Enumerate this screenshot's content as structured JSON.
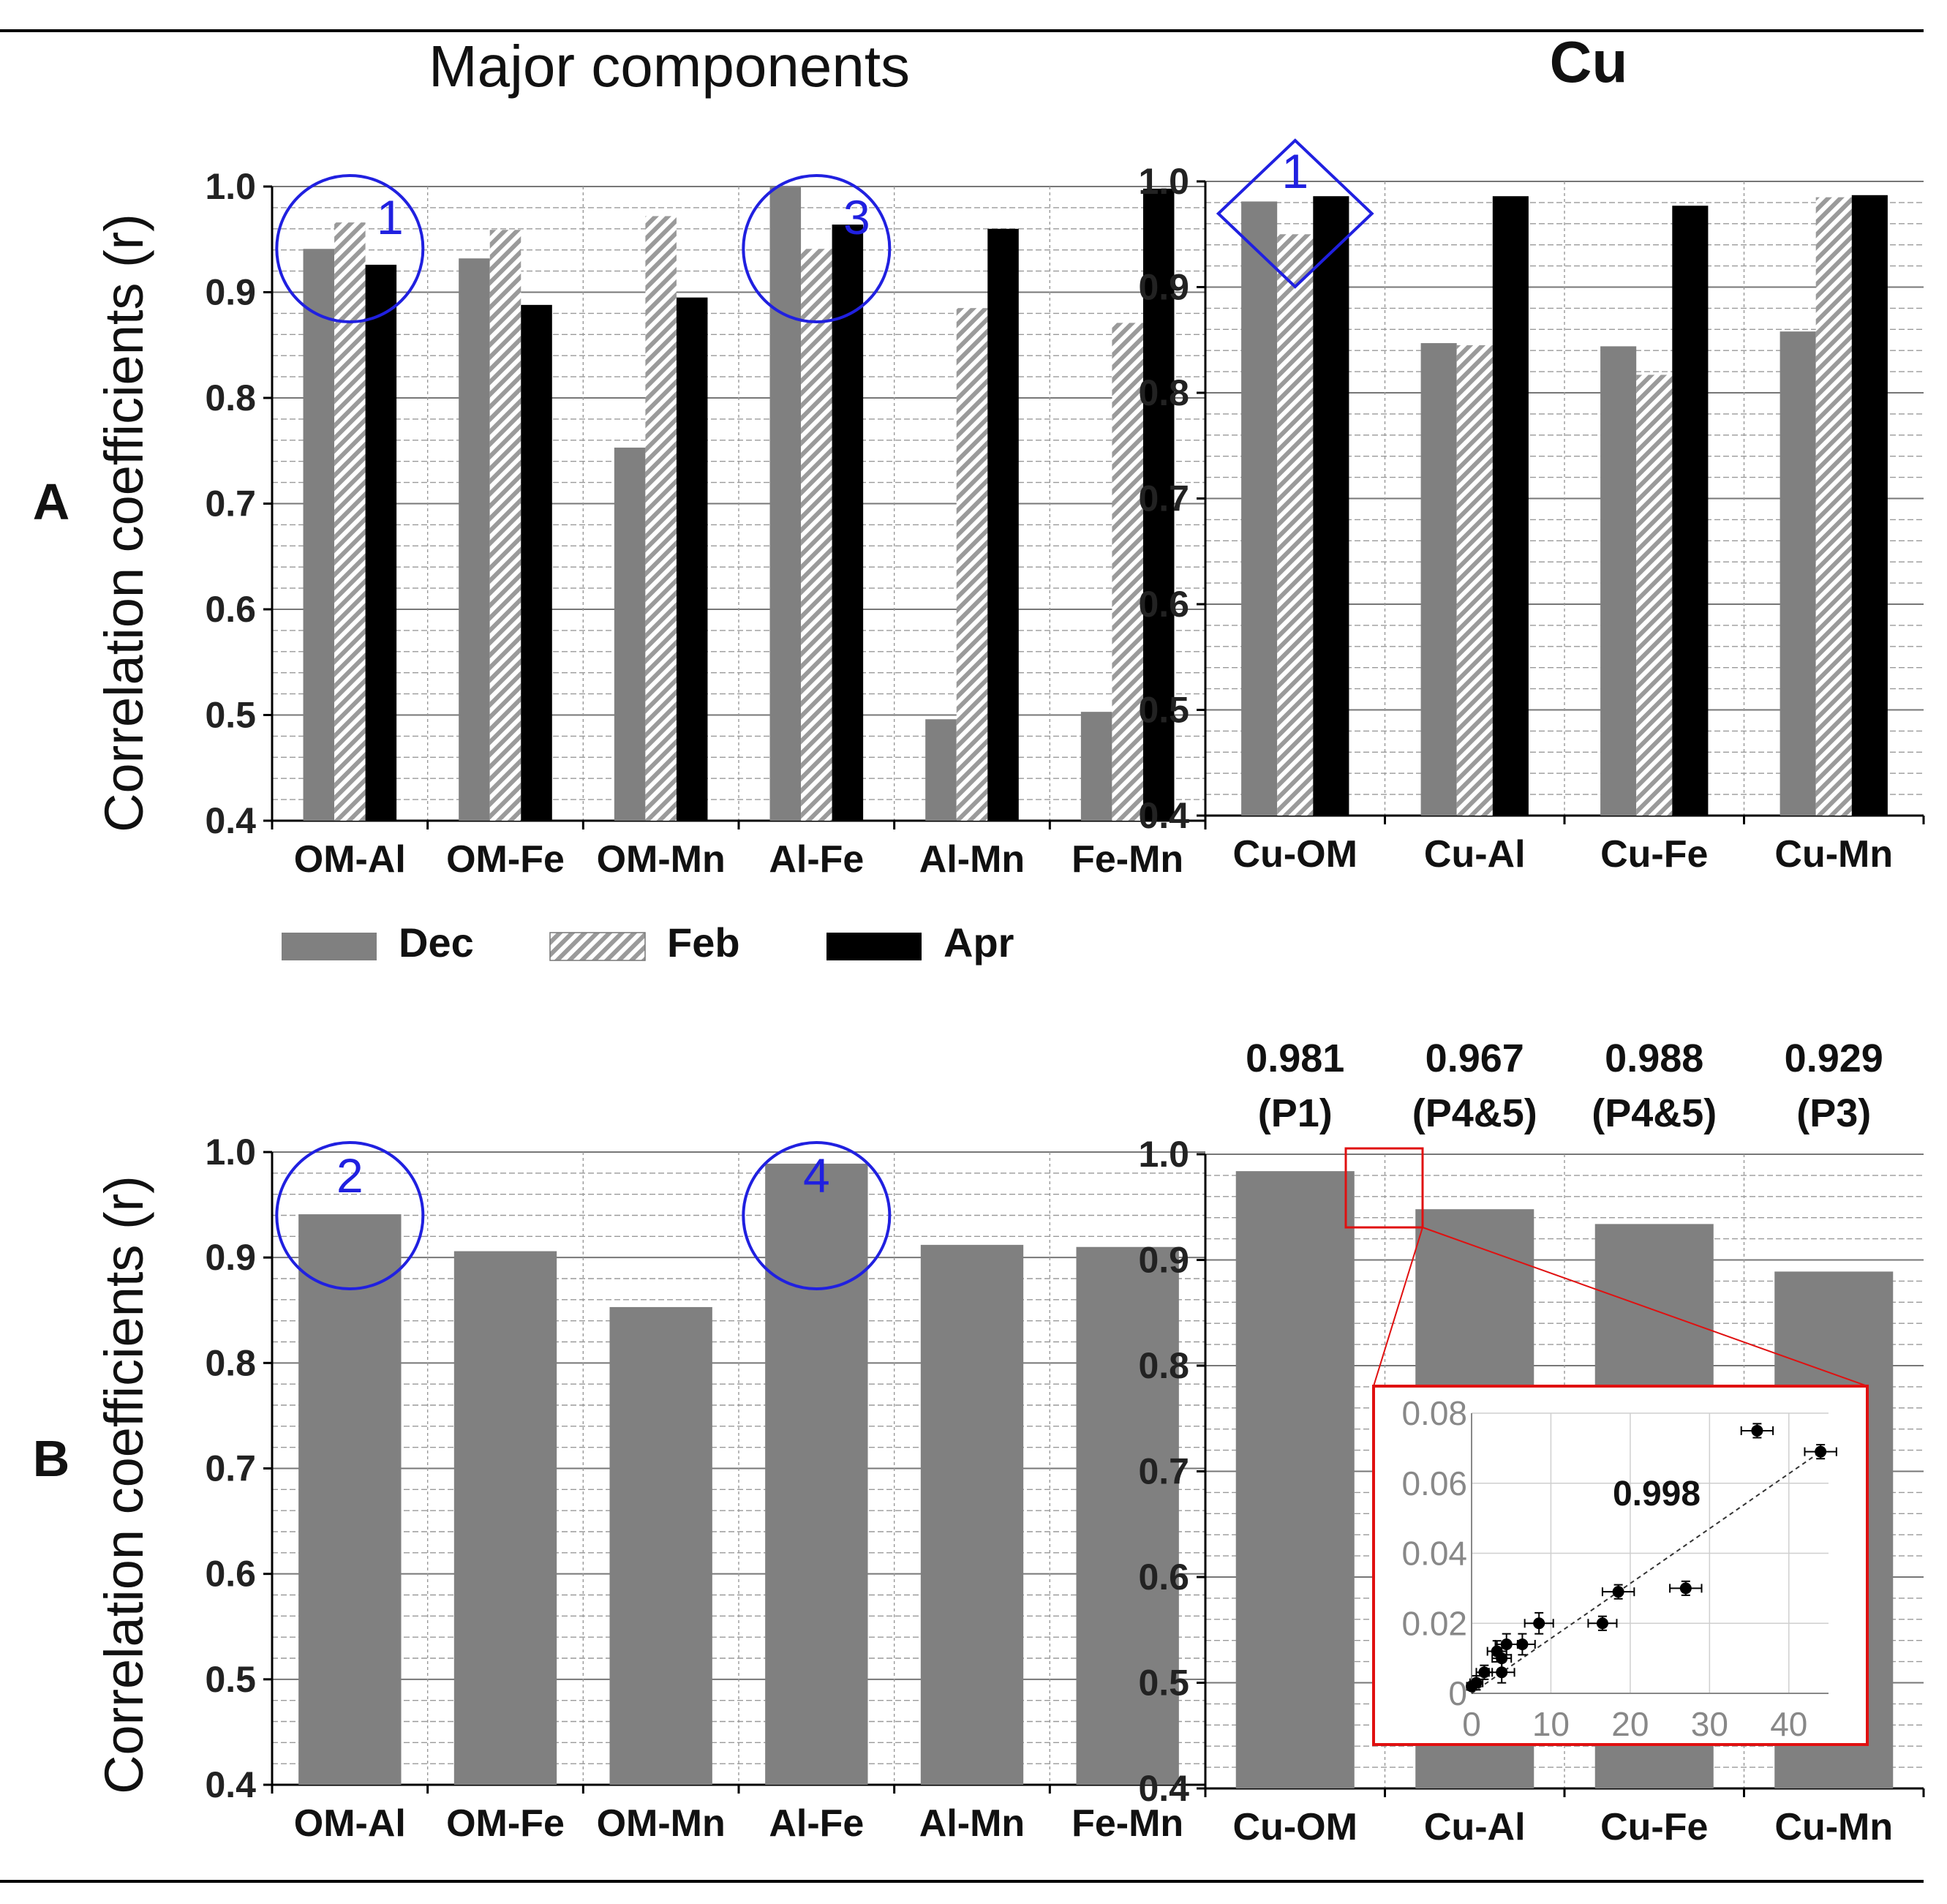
{
  "colors": {
    "dec": "#808080",
    "feb_hatch": "#9a9a9a",
    "apr": "#000000",
    "annotation": "#2020e0",
    "inset": "#e01010",
    "grid": "#9a9a9a"
  },
  "text": {
    "title_major": "Major components",
    "title_cu": "Cu",
    "label_a": "A",
    "label_b": "B",
    "y_label_a": "Correlation coefficients (r)",
    "y_label_b": "Correlation coefficients (r)"
  },
  "legend": [
    {
      "name": "Dec",
      "style": "dec"
    },
    {
      "name": "Feb",
      "style": "feb"
    },
    {
      "name": "Apr",
      "style": "apr"
    }
  ],
  "chart_data": [
    {
      "id": "A_major",
      "type": "bar",
      "categories": [
        "OM-Al",
        "OM-Fe",
        "OM-Mn",
        "Al-Fe",
        "Al-Mn",
        "Fe-Mn"
      ],
      "series": [
        {
          "name": "Dec",
          "values": [
            0.941,
            0.932,
            0.753,
            1.0,
            0.496,
            0.503
          ]
        },
        {
          "name": "Feb",
          "values": [
            0.966,
            0.959,
            0.972,
            0.941,
            0.885,
            0.871
          ]
        },
        {
          "name": "Apr",
          "values": [
            0.926,
            0.888,
            0.895,
            0.964,
            0.96,
            0.998
          ]
        }
      ],
      "ylim": [
        0.4,
        1.0
      ],
      "yticks": [
        "0.4",
        "0.5",
        "0.6",
        "0.7",
        "0.8",
        "0.9",
        "1.0"
      ],
      "ylabel": "Correlation coefficients (r)",
      "annotations": [
        {
          "label": "1",
          "shape": "circle",
          "category": 0
        },
        {
          "label": "3",
          "shape": "circle",
          "category": 3
        }
      ]
    },
    {
      "id": "A_cu",
      "type": "bar",
      "categories": [
        "Cu-OM",
        "Cu-Al",
        "Cu-Fe",
        "Cu-Mn"
      ],
      "series": [
        {
          "name": "Dec",
          "values": [
            0.981,
            0.847,
            0.844,
            0.858
          ]
        },
        {
          "name": "Feb",
          "values": [
            0.95,
            0.845,
            0.817,
            0.985
          ]
        },
        {
          "name": "Apr",
          "values": [
            0.986,
            0.986,
            0.977,
            0.987
          ]
        }
      ],
      "ylim": [
        0.4,
        1.0
      ],
      "yticks": [
        "0.4",
        "0.5",
        "0.6",
        "0.7",
        "0.8",
        "0.9",
        "1.0"
      ],
      "title": "Cu",
      "annotations": [
        {
          "label": "1",
          "shape": "diamond",
          "category": 0
        }
      ]
    },
    {
      "id": "B_major",
      "type": "bar",
      "categories": [
        "OM-Al",
        "OM-Fe",
        "OM-Mn",
        "Al-Fe",
        "Al-Mn",
        "Fe-Mn"
      ],
      "values": [
        0.941,
        0.906,
        0.853,
        0.989,
        0.912,
        0.91
      ],
      "ylim": [
        0.4,
        1.0
      ],
      "yticks": [
        "0.4",
        "0.5",
        "0.6",
        "0.7",
        "0.8",
        "0.9",
        "1.0"
      ],
      "ylabel": "Correlation coefficients (r)",
      "annotations": [
        {
          "label": "2",
          "shape": "circle",
          "category": 0
        },
        {
          "label": "4",
          "shape": "circle",
          "category": 3
        }
      ]
    },
    {
      "id": "B_cu",
      "type": "bar",
      "categories": [
        "Cu-OM",
        "Cu-Al",
        "Cu-Fe",
        "Cu-Mn"
      ],
      "values": [
        0.984,
        0.948,
        0.934,
        0.889
      ],
      "ylim": [
        0.4,
        1.0
      ],
      "yticks": [
        "0.4",
        "0.5",
        "0.6",
        "0.7",
        "0.8",
        "0.9",
        "1.0"
      ],
      "top_labels": [
        {
          "value": "0.981",
          "site": "(P1)"
        },
        {
          "value": "0.967",
          "site": "(P4&5)"
        },
        {
          "value": "0.988",
          "site": "(P4&5)"
        },
        {
          "value": "0.929",
          "site": "(P3)"
        }
      ]
    },
    {
      "id": "B_cu_inset",
      "type": "scatter",
      "annotation": "0.998",
      "xlim": [
        0,
        45
      ],
      "ylim": [
        0,
        0.08
      ],
      "xticks": [
        "0",
        "10",
        "20",
        "30",
        "40"
      ],
      "yticks": [
        "0",
        "0.02",
        "0.04",
        "0.06",
        "0.08"
      ],
      "points": [
        {
          "x": 0.0,
          "y": 0.002,
          "xerr": 0.6,
          "yerr": 0.001
        },
        {
          "x": 0.6,
          "y": 0.003,
          "xerr": 0.8,
          "yerr": 0.002
        },
        {
          "x": 1.6,
          "y": 0.006,
          "xerr": 1.0,
          "yerr": 0.002
        },
        {
          "x": 3.2,
          "y": 0.012,
          "xerr": 1.2,
          "yerr": 0.003
        },
        {
          "x": 3.8,
          "y": 0.01,
          "xerr": 1.2,
          "yerr": 0.003
        },
        {
          "x": 4.4,
          "y": 0.014,
          "xerr": 1.4,
          "yerr": 0.003
        },
        {
          "x": 3.8,
          "y": 0.006,
          "xerr": 1.6,
          "yerr": 0.003
        },
        {
          "x": 6.4,
          "y": 0.014,
          "xerr": 1.6,
          "yerr": 0.003
        },
        {
          "x": 8.5,
          "y": 0.02,
          "xerr": 1.8,
          "yerr": 0.003
        },
        {
          "x": 16.5,
          "y": 0.02,
          "xerr": 1.8,
          "yerr": 0.002
        },
        {
          "x": 18.5,
          "y": 0.029,
          "xerr": 2.0,
          "yerr": 0.002
        },
        {
          "x": 27.0,
          "y": 0.03,
          "xerr": 2.0,
          "yerr": 0.002
        },
        {
          "x": 36.0,
          "y": 0.075,
          "xerr": 2.0,
          "yerr": 0.002
        },
        {
          "x": 44.0,
          "y": 0.069,
          "xerr": 2.0,
          "yerr": 0.002
        }
      ],
      "trendline": {
        "x": [
          0,
          44
        ],
        "y": [
          0.0,
          0.069
        ]
      }
    }
  ]
}
